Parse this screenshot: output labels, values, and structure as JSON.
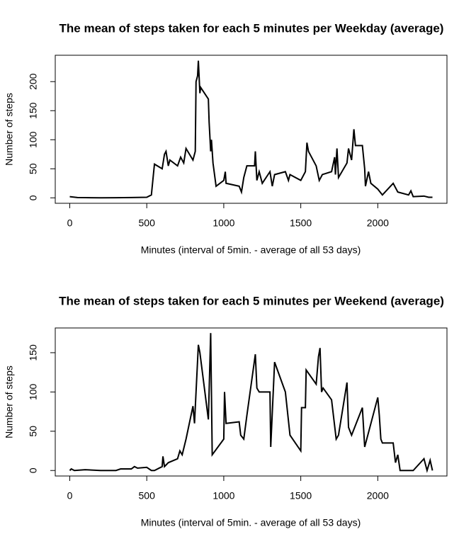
{
  "chart_data": [
    {
      "type": "line",
      "title": "The mean of steps taken for each 5 minutes per Weekday (average)",
      "xlabel": "Minutes (interval of 5min. - average of all 53 days)",
      "ylabel": "Number of steps",
      "color": "#000000",
      "xlim": [
        -94.2,
        2449.2
      ],
      "ylim": [
        -9.4,
        245.4
      ],
      "xticks": [
        0,
        500,
        1000,
        1500,
        2000
      ],
      "yticks": [
        0,
        50,
        100,
        150,
        200
      ],
      "x": [
        0,
        50,
        100,
        200,
        300,
        400,
        500,
        530,
        545,
        550,
        600,
        615,
        625,
        640,
        650,
        700,
        720,
        740,
        755,
        800,
        815,
        820,
        830,
        835,
        845,
        850,
        900,
        905,
        915,
        920,
        930,
        950,
        1000,
        1010,
        1015,
        1100,
        1115,
        1130,
        1150,
        1200,
        1205,
        1215,
        1230,
        1250,
        1300,
        1315,
        1330,
        1400,
        1420,
        1430,
        1500,
        1530,
        1540,
        1550,
        1600,
        1620,
        1640,
        1700,
        1720,
        1725,
        1735,
        1745,
        1800,
        1810,
        1830,
        1845,
        1855,
        1900,
        1915,
        1920,
        1940,
        1955,
        2000,
        2030,
        2100,
        2130,
        2200,
        2215,
        2230,
        2300,
        2330,
        2355
      ],
      "values": [
        2,
        0.5,
        0.3,
        0.1,
        0.2,
        0.5,
        1,
        5,
        45,
        58,
        50,
        75,
        80,
        55,
        65,
        55,
        70,
        60,
        85,
        65,
        80,
        200,
        210,
        236,
        180,
        190,
        170,
        130,
        80,
        100,
        60,
        20,
        30,
        45,
        25,
        20,
        10,
        35,
        55,
        55,
        80,
        30,
        45,
        25,
        45,
        20,
        40,
        45,
        30,
        40,
        30,
        45,
        95,
        80,
        55,
        30,
        40,
        45,
        70,
        40,
        85,
        35,
        60,
        85,
        65,
        118,
        90,
        90,
        50,
        20,
        45,
        25,
        15,
        5,
        25,
        10,
        5,
        12,
        2,
        3,
        1,
        1
      ]
    },
    {
      "type": "line",
      "title": "The mean of steps taken for each 5 minutes per Weekend (average)",
      "xlabel": "Minutes (interval of 5min. - average of all 53 days)",
      "ylabel": "Number of steps",
      "color": "#000000",
      "xlim": [
        -94.2,
        2449.2
      ],
      "ylim": [
        -7,
        181.5
      ],
      "xticks": [
        0,
        500,
        1000,
        1500,
        2000
      ],
      "yticks": [
        0,
        50,
        100,
        150
      ],
      "x": [
        0,
        10,
        30,
        100,
        200,
        300,
        330,
        400,
        420,
        440,
        500,
        530,
        550,
        600,
        605,
        615,
        640,
        700,
        715,
        730,
        755,
        800,
        810,
        835,
        845,
        900,
        915,
        925,
        1000,
        1005,
        1015,
        1100,
        1110,
        1130,
        1150,
        1205,
        1215,
        1230,
        1300,
        1305,
        1330,
        1400,
        1430,
        1500,
        1505,
        1530,
        1535,
        1600,
        1615,
        1625,
        1635,
        1645,
        1700,
        1730,
        1745,
        1800,
        1810,
        1830,
        1900,
        1915,
        2000,
        2010,
        2020,
        2030,
        2100,
        2115,
        2130,
        2145,
        2200,
        2230,
        2300,
        2320,
        2340,
        2355
      ],
      "values": [
        0,
        2,
        0,
        1,
        0,
        0,
        2,
        2,
        5,
        3,
        4,
        0,
        0,
        5,
        18,
        5,
        10,
        15,
        25,
        20,
        40,
        82,
        60,
        160,
        150,
        65,
        175,
        20,
        40,
        100,
        60,
        62,
        45,
        40,
        70,
        148,
        105,
        100,
        100,
        30,
        138,
        100,
        45,
        25,
        80,
        80,
        128,
        110,
        145,
        156,
        100,
        105,
        90,
        40,
        45,
        112,
        55,
        45,
        80,
        30,
        93,
        70,
        40,
        35,
        35,
        10,
        20,
        0,
        0,
        0,
        15,
        0,
        13,
        0
      ]
    }
  ]
}
